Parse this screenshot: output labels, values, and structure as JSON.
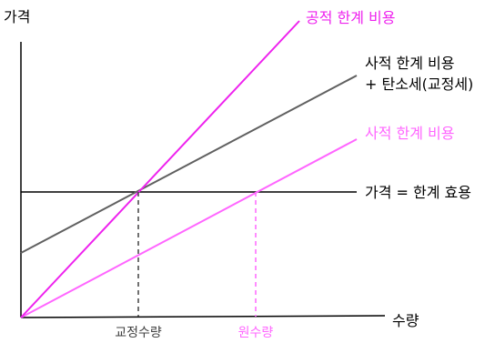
{
  "axes": {
    "y_label": "가격",
    "x_label": "수량"
  },
  "lines": {
    "social_cost": {
      "label": "공적 한계 비용",
      "color": "#ee22ee"
    },
    "private_plus_tax": {
      "label_line1": "사적 한계 비용",
      "label_line2": "+ 탄소세(교정세)",
      "color": "#606060"
    },
    "private_cost": {
      "label": "사적 한계 비용",
      "color": "#ff66ff"
    },
    "price": {
      "label": "가격 = 한계 효용",
      "color": "#000000"
    }
  },
  "ticks": {
    "corrected_quantity": {
      "label": "교정수량",
      "color": "#404040"
    },
    "original_quantity": {
      "label": "원수량",
      "color": "#ff66ff"
    }
  }
}
